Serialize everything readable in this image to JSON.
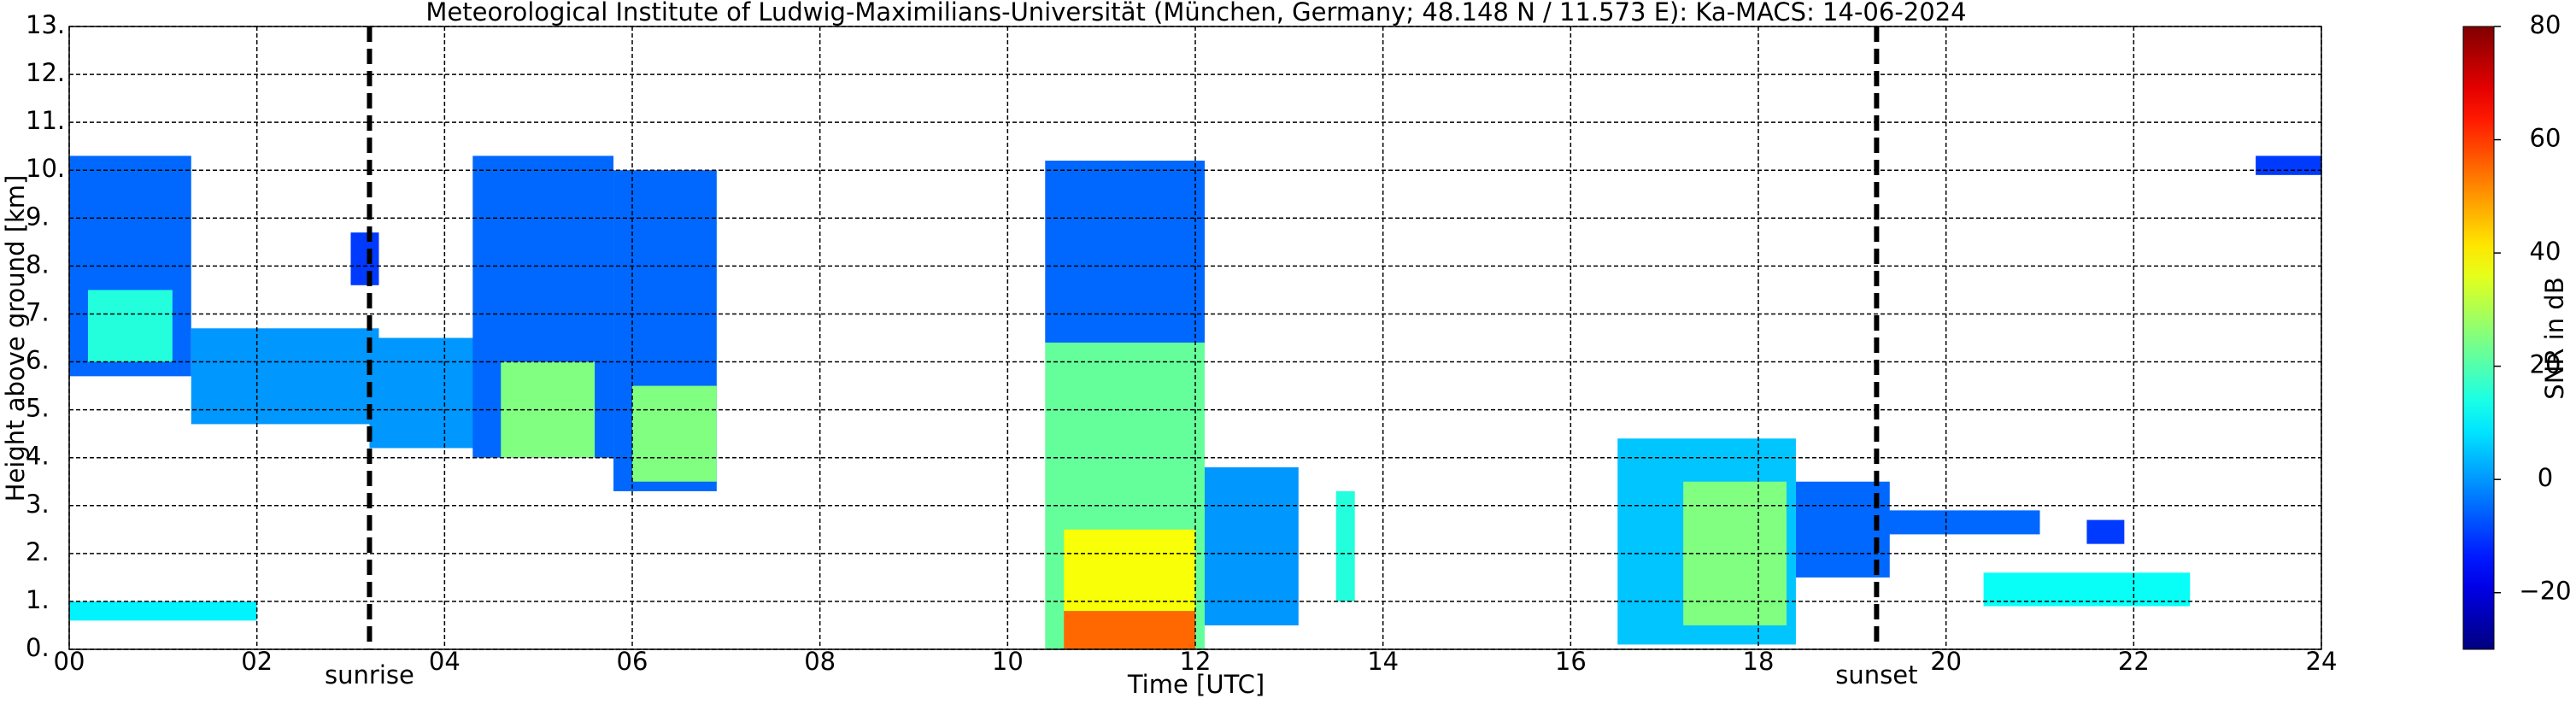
{
  "chart_data": {
    "type": "radar-image",
    "title": "Meteorological Institute of Ludwig-Maximilians-Universität (München, Germany; 48.148 N / 11.573 E):    Ka-MACS: 14-06-2024",
    "x_label": "Time [UTC]",
    "y_label": "Height above ground [km]",
    "colorbar_label": "SNR in dB",
    "xlim": [
      0,
      24
    ],
    "ylim": [
      0,
      13
    ],
    "clim": [
      -30,
      80
    ],
    "xticks": [
      {
        "value": 0,
        "label": "00"
      },
      {
        "value": 2,
        "label": "02"
      },
      {
        "value": 4,
        "label": "04"
      },
      {
        "value": 6,
        "label": "06"
      },
      {
        "value": 8,
        "label": "08"
      },
      10,
      12,
      14,
      16,
      18,
      20,
      22,
      24
    ],
    "yticks": [
      {
        "value": 0,
        "label": "0."
      },
      {
        "value": 1,
        "label": "1."
      },
      {
        "value": 2,
        "label": "2."
      },
      {
        "value": 3,
        "label": "3."
      },
      {
        "value": 4,
        "label": "4."
      },
      {
        "value": 5,
        "label": "5."
      },
      {
        "value": 6,
        "label": "6."
      },
      {
        "value": 7,
        "label": "7."
      },
      {
        "value": 8,
        "label": "8."
      },
      {
        "value": 9,
        "label": "9."
      },
      {
        "value": 10,
        "label": "10."
      },
      {
        "value": 11,
        "label": "11."
      },
      {
        "value": 12,
        "label": "12."
      },
      {
        "value": 13,
        "label": "13."
      }
    ],
    "cticks": [
      {
        "value": -20,
        "label": "−20"
      },
      0,
      20,
      40,
      60,
      80
    ],
    "grid": true,
    "markers": [
      {
        "label": "sunrise",
        "x": 3.2
      },
      {
        "label": "sunset",
        "x": 19.26
      }
    ],
    "echoes": [
      {
        "x": [
          0,
          1.3
        ],
        "y": [
          5.7,
          10.3
        ],
        "snr": -5
      },
      {
        "x": [
          0.2,
          1.1
        ],
        "y": [
          6,
          7.5
        ],
        "snr": 15
      },
      {
        "x": [
          1.3,
          3.3
        ],
        "y": [
          4.7,
          6.7
        ],
        "snr": 0
      },
      {
        "x": [
          0,
          2
        ],
        "y": [
          0.6,
          1
        ],
        "snr": 10
      },
      {
        "x": [
          3,
          3.3
        ],
        "y": [
          7.6,
          8.7
        ],
        "snr": -10
      },
      {
        "x": [
          3.2,
          4.8
        ],
        "y": [
          4.2,
          6.5
        ],
        "snr": 0
      },
      {
        "x": [
          4.3,
          5.8
        ],
        "y": [
          4,
          10.3
        ],
        "snr": -5
      },
      {
        "x": [
          4.6,
          5.6
        ],
        "y": [
          4,
          6
        ],
        "snr": 25
      },
      {
        "x": [
          5.8,
          6.9
        ],
        "y": [
          3.3,
          10
        ],
        "snr": -5
      },
      {
        "x": [
          6,
          6.9
        ],
        "y": [
          3.5,
          5.5
        ],
        "snr": 25
      },
      {
        "x": [
          10.4,
          12.1
        ],
        "y": [
          6.4,
          10.2
        ],
        "snr": -5
      },
      {
        "x": [
          10.4,
          12.1
        ],
        "y": [
          0,
          6.4
        ],
        "snr": 22
      },
      {
        "x": [
          10.6,
          12
        ],
        "y": [
          0.8,
          2.5
        ],
        "snr": 38
      },
      {
        "x": [
          10.6,
          12
        ],
        "y": [
          0,
          0.8
        ],
        "snr": 55
      },
      {
        "x": [
          12.1,
          13.1
        ],
        "y": [
          0.5,
          3.8
        ],
        "snr": 0
      },
      {
        "x": [
          13.5,
          13.7
        ],
        "y": [
          1,
          3.3
        ],
        "snr": 15
      },
      {
        "x": [
          16.5,
          18.4
        ],
        "y": [
          0.1,
          4.4
        ],
        "snr": 5
      },
      {
        "x": [
          17.2,
          18.3
        ],
        "y": [
          0.5,
          3.5
        ],
        "snr": 25
      },
      {
        "x": [
          18.4,
          19.4
        ],
        "y": [
          1.5,
          3.5
        ],
        "snr": -5
      },
      {
        "x": [
          19.2,
          21
        ],
        "y": [
          2.4,
          2.9
        ],
        "snr": -5
      },
      {
        "x": [
          21.5,
          21.9
        ],
        "y": [
          2.2,
          2.7
        ],
        "snr": -10
      },
      {
        "x": [
          20.4,
          22.6
        ],
        "y": [
          0.9,
          1.6
        ],
        "snr": 12
      },
      {
        "x": [
          23.3,
          24
        ],
        "y": [
          9.9,
          10.3
        ],
        "snr": -10
      }
    ]
  }
}
